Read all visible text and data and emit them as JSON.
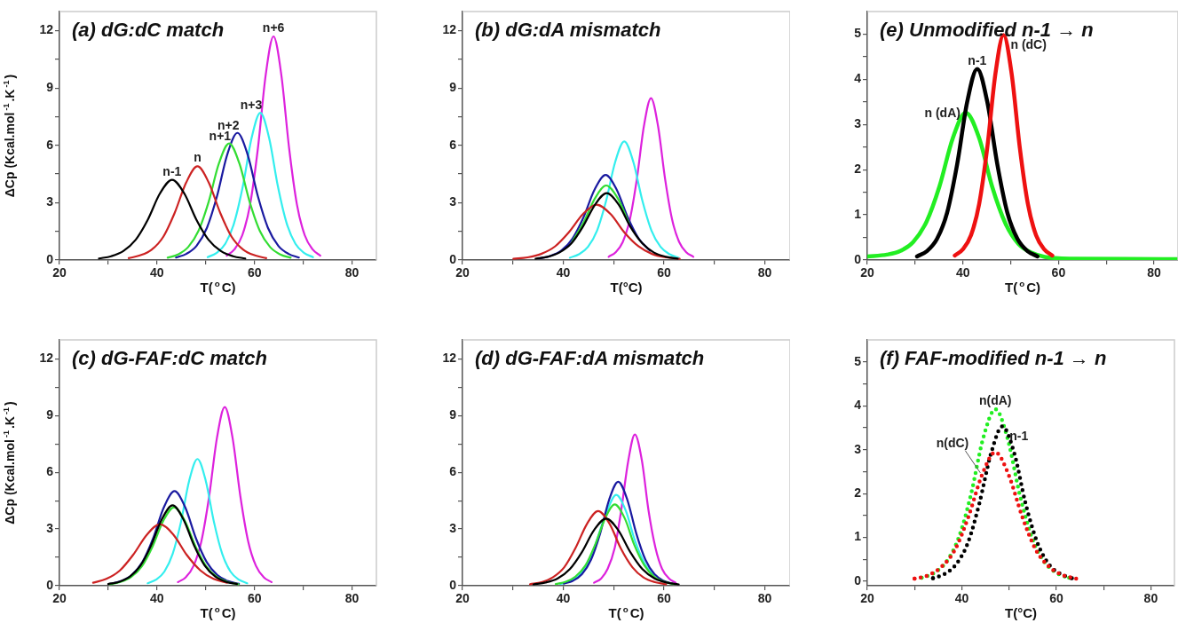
{
  "chart_data": [
    {
      "type": "line",
      "title": "(a) dG:dC match",
      "xlabel": "T($^{o}$C)",
      "ylabel": "ΔCp (Kcal.mol$^{-1}$.K$^{-1}$)",
      "xlim": [
        20,
        85
      ],
      "ylim": [
        0,
        13
      ],
      "xticks": [
        20,
        {
          "value": 30,
          "label": null
        },
        40,
        {
          "value": 50,
          "label": null
        },
        60,
        {
          "value": 70,
          "label": null
        },
        80
      ],
      "yticks": [
        0,
        {
          "value": 1.5,
          "label": null
        },
        3,
        {
          "value": 4.5,
          "label": null
        },
        6,
        {
          "value": 7.5,
          "label": null
        },
        9,
        {
          "value": 10.5,
          "label": null
        },
        12
      ],
      "series": [
        {
          "name": "n-1",
          "color": "#000000",
          "x": [
            28.1,
            30.6,
            33.1,
            35.6,
            38.1,
            40.6,
            43.1,
            45.6,
            48.1,
            50.6,
            53.1,
            55.6,
            58.1
          ],
          "values": [
            0.08,
            0.2,
            0.47,
            1.05,
            2.1,
            3.48,
            4.2,
            3.48,
            2.1,
            1.05,
            0.47,
            0.2,
            0.08
          ]
        },
        {
          "name": "n",
          "color": "#cc2222",
          "x": [
            34.2,
            36.5,
            38.9,
            41.3,
            43.6,
            46.0,
            48.3,
            50.6,
            53.0,
            55.3,
            57.7,
            60.1,
            62.4
          ],
          "values": [
            0.1,
            0.24,
            0.54,
            1.22,
            2.45,
            4.06,
            4.9,
            4.06,
            2.45,
            1.22,
            0.54,
            0.24,
            0.1
          ]
        },
        {
          "name": "n+1",
          "color": "#33dd33",
          "x": [
            42.2,
            44.3,
            46.4,
            48.5,
            50.6,
            52.7,
            54.8,
            56.9,
            59.0,
            61.1,
            63.2,
            65.3,
            67.4
          ],
          "values": [
            0.12,
            0.29,
            0.68,
            1.52,
            3.05,
            5.05,
            6.1,
            5.05,
            3.05,
            1.52,
            0.68,
            0.29,
            0.12
          ]
        },
        {
          "name": "n+2",
          "color": "#1a1aa0",
          "x": [
            43.9,
            46.0,
            48.1,
            50.2,
            52.3,
            54.4,
            56.5,
            58.6,
            60.7,
            62.8,
            64.9,
            67.0,
            69.1
          ],
          "values": [
            0.13,
            0.32,
            0.74,
            1.66,
            3.33,
            5.51,
            6.65,
            5.51,
            3.33,
            1.66,
            0.74,
            0.32,
            0.13
          ]
        },
        {
          "name": "n+3",
          "color": "#33eeee",
          "x": [
            50.4,
            52.2,
            54.0,
            55.8,
            57.6,
            59.4,
            61.2,
            63.0,
            64.8,
            66.6,
            68.4,
            70.2,
            72.0
          ],
          "values": [
            0.15,
            0.37,
            0.85,
            1.92,
            3.85,
            6.38,
            7.7,
            6.38,
            3.85,
            1.92,
            0.85,
            0.37,
            0.15
          ]
        },
        {
          "name": "n+6",
          "color": "#dd22dd",
          "x": [
            54.3,
            55.9,
            57.5,
            59.1,
            60.7,
            62.3,
            63.9,
            65.5,
            67.1,
            68.7,
            70.3,
            71.9,
            73.5
          ],
          "values": [
            0.23,
            0.56,
            1.3,
            2.91,
            5.85,
            9.69,
            11.7,
            9.69,
            5.85,
            2.91,
            1.3,
            0.56,
            0.23
          ]
        }
      ]
    },
    {
      "type": "line",
      "title": "(b) dG:dA mismatch",
      "xlabel": "T(°C)",
      "xlim": [
        20,
        85
      ],
      "ylim": [
        0,
        13
      ],
      "xticks": [
        20,
        {
          "value": 30,
          "label": null
        },
        40,
        {
          "value": 50,
          "label": null
        },
        60,
        {
          "value": 70,
          "label": null
        },
        80
      ],
      "yticks": [
        0,
        {
          "value": 1.5,
          "label": null
        },
        3,
        {
          "value": 4.5,
          "label": null
        },
        6,
        {
          "value": 7.5,
          "label": null
        },
        9,
        {
          "value": 10.5,
          "label": null
        },
        12
      ],
      "series": [
        {
          "color": "#000000",
          "x": [
            34.5,
            36.9,
            39.2,
            41.6,
            43.9,
            46.3,
            48.6,
            51.0,
            53.3,
            55.7,
            58.0,
            60.4,
            62.7
          ],
          "values": [
            0.07,
            0.17,
            0.39,
            0.87,
            1.75,
            2.9,
            3.5,
            2.9,
            1.75,
            0.87,
            0.39,
            0.17,
            0.07
          ]
        },
        {
          "color": "#cc2222",
          "x": [
            30.1,
            32.9,
            35.6,
            38.4,
            41.1,
            43.9,
            46.6,
            49.4,
            52.1,
            54.9,
            57.6,
            60.4,
            63.1
          ],
          "values": [
            0.06,
            0.14,
            0.32,
            0.72,
            1.45,
            2.4,
            2.9,
            2.4,
            1.45,
            0.72,
            0.32,
            0.14,
            0.06
          ]
        },
        {
          "color": "#33dd33",
          "x": [
            41.8,
            44.0,
            46.3,
            48.5,
            50.8,
            53.0
          ],
          "values": [
            0.97,
            1.95,
            3.23,
            3.9,
            3.23,
            1.95
          ]
        },
        {
          "color": "#1a1aa0",
          "x": [
            35.2,
            37.4,
            39.6,
            41.8,
            44.0,
            46.2,
            48.4,
            50.6,
            52.8,
            55.0,
            57.2
          ],
          "values": [
            0.09,
            0.21,
            0.49,
            1.11,
            2.23,
            3.68,
            4.45,
            3.68,
            2.23,
            1.11,
            0.49
          ]
        },
        {
          "color": "#33eeee",
          "x": [
            41.3,
            43.1,
            44.9,
            46.7,
            48.5,
            50.3,
            52.1,
            53.9,
            55.7,
            57.5,
            59.3,
            61.1,
            62.9
          ],
          "values": [
            0.12,
            0.3,
            0.69,
            1.54,
            3.1,
            5.13,
            6.2,
            5.13,
            3.1,
            1.54,
            0.69,
            0.3,
            0.12
          ]
        },
        {
          "color": "#dd22dd",
          "x": [
            49.0,
            50.4,
            51.8,
            53.2,
            54.6,
            56.0,
            57.4,
            58.8,
            60.2,
            61.6,
            63.0,
            64.4,
            65.8
          ],
          "values": [
            0.17,
            0.41,
            0.94,
            2.11,
            4.24,
            7.01,
            8.47,
            7.01,
            4.24,
            2.11,
            0.94,
            0.41,
            0.17
          ]
        }
      ]
    },
    {
      "type": "line",
      "title": "(e) Unmodified n-1 → n",
      "xlabel": "T($^{o}$C)",
      "xlim": [
        20,
        85
      ],
      "ylim": [
        0,
        5.5
      ],
      "xticks": [
        20,
        {
          "value": 30,
          "label": null
        },
        40,
        {
          "value": 50,
          "label": null
        },
        60,
        {
          "value": 70,
          "label": null
        },
        80
      ],
      "yticks": [
        0,
        {
          "value": 0.5,
          "label": null
        },
        1,
        {
          "value": 1.5,
          "label": null
        },
        2,
        {
          "value": 2.5,
          "label": null
        },
        3,
        {
          "value": 3.5,
          "label": null
        },
        4,
        {
          "value": 4.5,
          "label": null
        },
        5
      ],
      "series": [
        {
          "name": "n (dC)",
          "color": "#ee1111",
          "x": [
            38.3,
            40.0,
            41.7,
            43.4,
            45.1,
            46.8,
            48.5,
            50.2,
            51.9,
            53.6,
            55.3,
            57.0,
            58.7
          ],
          "values": [
            0.1,
            0.24,
            0.55,
            1.24,
            2.49,
            4.12,
            4.98,
            4.12,
            2.49,
            1.24,
            0.55,
            0.24,
            0.1
          ]
        },
        {
          "name": "n-1",
          "color": "#000000",
          "x": [
            30.4,
            32.5,
            34.6,
            36.7,
            38.8,
            40.9,
            43.0,
            45.1,
            47.2,
            49.3,
            51.4,
            53.5,
            55.6
          ],
          "values": [
            0.08,
            0.2,
            0.47,
            1.05,
            2.12,
            3.5,
            4.23,
            3.5,
            2.12,
            1.05,
            0.47,
            0.2,
            0.08
          ]
        },
        {
          "name": "n (dA)",
          "color": "#22ee22",
          "x": [
            20,
            24.1,
            26.9,
            29.6,
            32.4,
            35.1,
            37.9,
            40.6,
            43.4,
            46.1,
            48.9,
            51.6,
            54.4,
            57.1,
            62.6,
            85
          ],
          "values": [
            0.08,
            0.12,
            0.2,
            0.4,
            0.85,
            1.63,
            2.7,
            3.26,
            2.7,
            1.63,
            0.81,
            0.36,
            0.16,
            0.07,
            0.03,
            0.02
          ]
        }
      ]
    },
    {
      "type": "line",
      "title": "(c) dG-FAF:dC match",
      "xlabel": "T($^{o}$C)",
      "ylabel": "ΔCp (Kcal.mol$^{-1}$.K$^{-1}$)",
      "xlim": [
        20,
        85
      ],
      "ylim": [
        0,
        13
      ],
      "xticks": [
        20,
        {
          "value": 30,
          "label": null
        },
        40,
        {
          "value": 50,
          "label": null
        },
        60,
        {
          "value": 70,
          "label": null
        },
        80
      ],
      "yticks": [
        0,
        {
          "value": 1.5,
          "label": null
        },
        3,
        {
          "value": 4.5,
          "label": null
        },
        6,
        {
          "value": 7.5,
          "label": null
        },
        9,
        {
          "value": 10.5,
          "label": null
        },
        12
      ],
      "series": [
        {
          "color": "#000000",
          "x": [
            30.0,
            32.2,
            34.4,
            36.6,
            38.8,
            41.0,
            43.2,
            45.4,
            47.6,
            49.8,
            52.0,
            54.2,
            56.4
          ],
          "values": [
            0.09,
            0.2,
            0.47,
            1.06,
            2.13,
            3.52,
            4.25,
            3.52,
            2.13,
            1.06,
            0.47,
            0.2,
            0.09
          ]
        },
        {
          "color": "#cc2222",
          "x": [
            26.9,
            29.6,
            32.4,
            35.1,
            37.9,
            40.6,
            43.4,
            46.1,
            48.9,
            51.6,
            54.4
          ],
          "values": [
            0.16,
            0.36,
            0.81,
            1.63,
            2.69,
            3.25,
            2.69,
            1.63,
            0.81,
            0.36,
            0.16
          ]
        },
        {
          "color": "#33dd33",
          "x": [
            30.3,
            32.5,
            34.7,
            36.9,
            39.1,
            41.3,
            43.5,
            45.7,
            47.9,
            50.1,
            52.3,
            54.5,
            56.7
          ],
          "values": [
            0.08,
            0.2,
            0.46,
            1.03,
            2.08,
            3.44,
            4.15,
            3.44,
            2.08,
            1.03,
            0.46,
            0.2,
            0.08
          ]
        },
        {
          "color": "#1a1aa0",
          "x": [
            30.4,
            32.6,
            34.8,
            37.0,
            39.2,
            41.4,
            43.6,
            45.8,
            48.0,
            50.2,
            52.4,
            54.6,
            56.8
          ],
          "values": [
            0.1,
            0.24,
            0.56,
            1.25,
            2.5,
            4.14,
            5.0,
            4.14,
            2.5,
            1.25,
            0.56,
            0.24,
            0.1
          ]
        },
        {
          "color": "#33eeee",
          "x": [
            38.1,
            39.8,
            41.5,
            43.2,
            44.9,
            46.6,
            48.3,
            50.0,
            51.7,
            53.4,
            55.1,
            56.8,
            58.5
          ],
          "values": [
            0.13,
            0.32,
            0.74,
            1.67,
            3.35,
            5.55,
            6.7,
            5.55,
            3.35,
            1.67,
            0.74,
            0.32,
            0.13
          ]
        },
        {
          "color": "#dd22dd",
          "x": [
            44.3,
            45.9,
            47.5,
            49.1,
            50.7,
            52.3,
            53.9,
            55.5,
            57.1,
            58.7,
            60.3,
            61.9,
            63.5
          ],
          "values": [
            0.19,
            0.45,
            1.05,
            2.35,
            4.73,
            7.82,
            9.45,
            7.82,
            4.73,
            2.35,
            1.05,
            0.45,
            0.19
          ]
        }
      ]
    },
    {
      "type": "line",
      "title": "(d) dG-FAF:dA mismatch",
      "xlabel": "T($^{o}$C)",
      "xlim": [
        20,
        85
      ],
      "ylim": [
        0,
        13
      ],
      "xticks": [
        20,
        {
          "value": 30,
          "label": null
        },
        40,
        {
          "value": 50,
          "label": null
        },
        60,
        {
          "value": 70,
          "label": null
        },
        80
      ],
      "yticks": [
        0,
        {
          "value": 1.5,
          "label": null
        },
        3,
        {
          "value": 4.5,
          "label": null
        },
        6,
        {
          "value": 7.5,
          "label": null
        },
        9,
        {
          "value": 10.5,
          "label": null
        },
        12
      ],
      "series": [
        {
          "color": "#000000",
          "x": [
            34.1,
            36.5,
            38.9,
            41.3,
            43.7,
            46.1,
            48.5,
            50.9,
            53.3,
            55.7,
            58.1,
            60.5,
            62.9
          ],
          "values": [
            0.07,
            0.17,
            0.39,
            0.88,
            1.78,
            2.94,
            3.55,
            2.94,
            1.78,
            0.88,
            0.39,
            0.17,
            0.07
          ]
        },
        {
          "color": "#cc2222",
          "x": [
            33.4,
            35.7,
            37.9,
            40.2,
            42.4,
            44.7,
            46.9,
            49.2,
            51.4,
            53.7,
            55.9,
            58.2,
            60.4
          ],
          "values": [
            0.08,
            0.19,
            0.44,
            0.98,
            1.98,
            3.27,
            3.95,
            3.27,
            1.98,
            0.98,
            0.44,
            0.19,
            0.08
          ]
        },
        {
          "color": "#33dd33",
          "x": [
            38.5,
            40.5,
            42.4,
            44.4,
            46.3,
            48.3,
            50.2,
            52.2,
            54.1,
            56.1,
            58.0,
            60.0,
            61.9
          ],
          "values": [
            0.09,
            0.21,
            0.48,
            1.07,
            2.15,
            3.56,
            4.3,
            3.56,
            2.15,
            1.07,
            0.48,
            0.21,
            0.09
          ]
        },
        {
          "color": "#1a1aa0",
          "x": [
            40.1,
            41.9,
            43.7,
            45.5,
            47.3,
            49.1,
            50.9,
            52.7,
            54.5,
            56.3,
            58.1,
            59.9,
            61.7
          ],
          "values": [
            0.11,
            0.26,
            0.61,
            1.37,
            2.75,
            4.55,
            5.5,
            4.55,
            2.75,
            1.37,
            0.61,
            0.26,
            0.11
          ]
        },
        {
          "color": "#33eeee",
          "x": [
            39.4,
            41.3,
            43.1,
            45.0,
            48.7,
            50.5,
            52.4,
            54.2,
            56.1,
            57.9
          ],
          "values": [
            0.1,
            0.23,
            0.53,
            1.2,
            3.97,
            4.8,
            3.97,
            2.4,
            1.2,
            0.53
          ]
        },
        {
          "color": "#dd22dd",
          "x": [
            46.1,
            47.5,
            48.8,
            50.2,
            51.5,
            52.9,
            54.2,
            55.6,
            56.9,
            58.3,
            59.6,
            61.0,
            62.3
          ],
          "values": [
            0.16,
            0.38,
            0.89,
            1.99,
            4.0,
            6.62,
            8.0,
            6.62,
            4.0,
            1.99,
            0.89,
            0.38,
            0.16
          ]
        }
      ]
    },
    {
      "type": "line",
      "title": "(f) FAF-modified n-1 → n",
      "xlabel": "T(°C)",
      "xlim": [
        20,
        85
      ],
      "ylim": [
        -0.1,
        5.5
      ],
      "line_style": "dotted",
      "xticks": [
        20,
        {
          "value": 30,
          "label": null
        },
        40,
        {
          "value": 50,
          "label": null
        },
        60,
        {
          "value": 70,
          "label": null
        },
        80
      ],
      "yticks": [
        0,
        {
          "value": 0.5,
          "label": null
        },
        1,
        {
          "value": 1.5,
          "label": null
        },
        2,
        {
          "value": 2.5,
          "label": null
        },
        3,
        {
          "value": 3.5,
          "label": null
        },
        4,
        {
          "value": 4.5,
          "label": null
        },
        5
      ],
      "series": [
        {
          "name": "n(dC)",
          "color": "#ee1111",
          "x": [
            30.0,
            32.9,
            35.7,
            38.6,
            41.4,
            44.3,
            47.1,
            49.9,
            52.8,
            55.6,
            58.5,
            61.4,
            64.2
          ],
          "values": [
            0.06,
            0.14,
            0.33,
            0.73,
            1.47,
            2.43,
            2.94,
            2.43,
            1.47,
            0.73,
            0.33,
            0.14,
            0.06
          ]
        },
        {
          "name": "n-1",
          "color": "#000000",
          "x": [
            33.9,
            36.4,
            38.8,
            41.3,
            43.7,
            46.2,
            48.6,
            51.1,
            53.5,
            56.0,
            58.4,
            60.9,
            63.3
          ],
          "values": [
            0.07,
            0.17,
            0.39,
            0.88,
            1.77,
            2.92,
            3.53,
            2.92,
            1.77,
            0.88,
            0.39,
            0.17,
            0.07
          ]
        },
        {
          "name": "n(dA)",
          "color": "#22ee22",
          "x": [
            31.5,
            34.1,
            36.7,
            39.3,
            41.9,
            44.5,
            47.1,
            49.7,
            52.3,
            54.9,
            57.5,
            60.1,
            62.7
          ],
          "values": [
            0.08,
            0.19,
            0.44,
            0.98,
            1.96,
            3.25,
            3.92,
            3.25,
            1.96,
            0.98,
            0.44,
            0.19,
            0.08
          ]
        }
      ]
    }
  ]
}
